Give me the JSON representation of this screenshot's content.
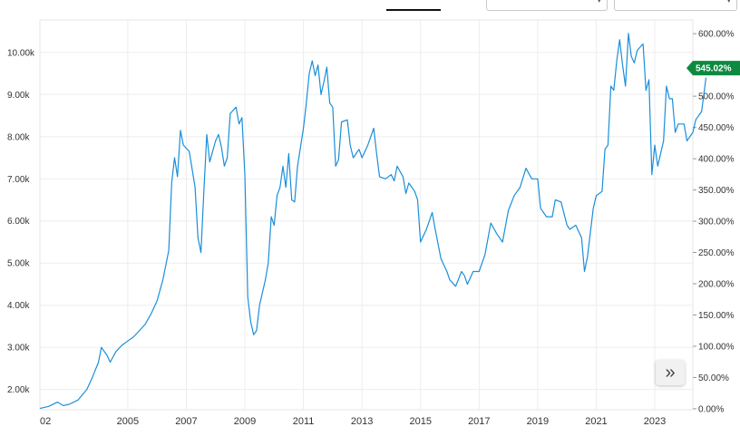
{
  "chart_data": {
    "type": "line",
    "title": "",
    "x_ticks": [
      "02",
      "2005",
      "2007",
      "2009",
      "2011",
      "2013",
      "2015",
      "2017",
      "2019",
      "2021",
      "2023"
    ],
    "x_tick_years": [
      2002.0,
      2005.0,
      2007.0,
      2009.0,
      2011.0,
      2013.0,
      2015.0,
      2017.0,
      2019.0,
      2021.0,
      2023.0
    ],
    "xlim": [
      2002.0,
      2024.3
    ],
    "y_left_ticks": [
      "2.00k",
      "3.00k",
      "4.00k",
      "5.00k",
      "6.00k",
      "7.00k",
      "8.00k",
      "9.00k",
      "10.00k"
    ],
    "y_left_tick_values": [
      2000,
      3000,
      4000,
      5000,
      6000,
      7000,
      8000,
      9000,
      10000
    ],
    "ylim_left": [
      1520,
      10770
    ],
    "y_right_ticks": [
      "0.00%",
      "50.00%",
      "100.00%",
      "150.00%",
      "200.00%",
      "250.00%",
      "300.00%",
      "350.00%",
      "400.00%",
      "450.00%",
      "500.00%",
      "550.00%",
      "600.00%"
    ],
    "y_right_tick_values": [
      0,
      50,
      100,
      150,
      200,
      250,
      300,
      350,
      400,
      450,
      500,
      550,
      600
    ],
    "ylim_right": [
      -1.6,
      622
    ],
    "grid": true,
    "series": [
      {
        "color": "#1a8fd9",
        "points": [
          [
            2002.0,
            1550
          ],
          [
            2002.3,
            1600
          ],
          [
            2002.6,
            1700
          ],
          [
            2002.8,
            1620
          ],
          [
            2003.0,
            1650
          ],
          [
            2003.3,
            1750
          ],
          [
            2003.6,
            2000
          ],
          [
            2003.8,
            2300
          ],
          [
            2004.0,
            2650
          ],
          [
            2004.1,
            3000
          ],
          [
            2004.3,
            2800
          ],
          [
            2004.4,
            2650
          ],
          [
            2004.6,
            2900
          ],
          [
            2004.8,
            3050
          ],
          [
            2005.0,
            3150
          ],
          [
            2005.2,
            3250
          ],
          [
            2005.4,
            3400
          ],
          [
            2005.6,
            3550
          ],
          [
            2005.8,
            3800
          ],
          [
            2006.0,
            4100
          ],
          [
            2006.2,
            4600
          ],
          [
            2006.4,
            5300
          ],
          [
            2006.5,
            6900
          ],
          [
            2006.6,
            7500
          ],
          [
            2006.7,
            7050
          ],
          [
            2006.8,
            8150
          ],
          [
            2006.9,
            7800
          ],
          [
            2007.1,
            7650
          ],
          [
            2007.3,
            6800
          ],
          [
            2007.4,
            5600
          ],
          [
            2007.5,
            5250
          ],
          [
            2007.6,
            6700
          ],
          [
            2007.7,
            8050
          ],
          [
            2007.8,
            7400
          ],
          [
            2008.0,
            7900
          ],
          [
            2008.1,
            8050
          ],
          [
            2008.2,
            7750
          ],
          [
            2008.3,
            7300
          ],
          [
            2008.4,
            7500
          ],
          [
            2008.5,
            8550
          ],
          [
            2008.7,
            8700
          ],
          [
            2008.8,
            8300
          ],
          [
            2008.9,
            8450
          ],
          [
            2009.0,
            7100
          ],
          [
            2009.1,
            4200
          ],
          [
            2009.2,
            3600
          ],
          [
            2009.3,
            3300
          ],
          [
            2009.4,
            3400
          ],
          [
            2009.5,
            4000
          ],
          [
            2009.7,
            4600
          ],
          [
            2009.8,
            5000
          ],
          [
            2009.9,
            6100
          ],
          [
            2010.0,
            5900
          ],
          [
            2010.1,
            6600
          ],
          [
            2010.2,
            6800
          ],
          [
            2010.3,
            7300
          ],
          [
            2010.4,
            6800
          ],
          [
            2010.5,
            7600
          ],
          [
            2010.6,
            6500
          ],
          [
            2010.7,
            6450
          ],
          [
            2010.8,
            7300
          ],
          [
            2011.0,
            8200
          ],
          [
            2011.1,
            8800
          ],
          [
            2011.2,
            9500
          ],
          [
            2011.3,
            9800
          ],
          [
            2011.4,
            9450
          ],
          [
            2011.5,
            9700
          ],
          [
            2011.6,
            9000
          ],
          [
            2011.7,
            9300
          ],
          [
            2011.8,
            9650
          ],
          [
            2011.9,
            8800
          ],
          [
            2012.0,
            8700
          ],
          [
            2012.1,
            7300
          ],
          [
            2012.2,
            7450
          ],
          [
            2012.3,
            8350
          ],
          [
            2012.5,
            8400
          ],
          [
            2012.6,
            7800
          ],
          [
            2012.7,
            7500
          ],
          [
            2012.8,
            7600
          ],
          [
            2012.9,
            7700
          ],
          [
            2013.0,
            7500
          ],
          [
            2013.2,
            7800
          ],
          [
            2013.4,
            8200
          ],
          [
            2013.5,
            7600
          ],
          [
            2013.6,
            7050
          ],
          [
            2013.8,
            7000
          ],
          [
            2014.0,
            7100
          ],
          [
            2014.1,
            6950
          ],
          [
            2014.2,
            7300
          ],
          [
            2014.4,
            7050
          ],
          [
            2014.5,
            6650
          ],
          [
            2014.6,
            6900
          ],
          [
            2014.8,
            6700
          ],
          [
            2014.9,
            6500
          ],
          [
            2015.0,
            5500
          ],
          [
            2015.2,
            5800
          ],
          [
            2015.4,
            6200
          ],
          [
            2015.5,
            5800
          ],
          [
            2015.7,
            5100
          ],
          [
            2015.9,
            4800
          ],
          [
            2016.0,
            4600
          ],
          [
            2016.2,
            4450
          ],
          [
            2016.4,
            4800
          ],
          [
            2016.5,
            4700
          ],
          [
            2016.6,
            4500
          ],
          [
            2016.8,
            4800
          ],
          [
            2017.0,
            4800
          ],
          [
            2017.2,
            5200
          ],
          [
            2017.4,
            5950
          ],
          [
            2017.6,
            5700
          ],
          [
            2017.8,
            5500
          ],
          [
            2018.0,
            6250
          ],
          [
            2018.2,
            6600
          ],
          [
            2018.4,
            6800
          ],
          [
            2018.6,
            7250
          ],
          [
            2018.8,
            7000
          ],
          [
            2019.0,
            7000
          ],
          [
            2019.1,
            6300
          ],
          [
            2019.3,
            6100
          ],
          [
            2019.5,
            6100
          ],
          [
            2019.6,
            6500
          ],
          [
            2019.8,
            6450
          ],
          [
            2020.0,
            5900
          ],
          [
            2020.1,
            5800
          ],
          [
            2020.3,
            5900
          ],
          [
            2020.5,
            5600
          ],
          [
            2020.6,
            4800
          ],
          [
            2020.7,
            5150
          ],
          [
            2020.9,
            6300
          ],
          [
            2021.0,
            6600
          ],
          [
            2021.1,
            6650
          ],
          [
            2021.2,
            6700
          ],
          [
            2021.3,
            7700
          ],
          [
            2021.4,
            7800
          ],
          [
            2021.5,
            9200
          ],
          [
            2021.6,
            9100
          ],
          [
            2021.7,
            9800
          ],
          [
            2021.8,
            10300
          ],
          [
            2021.9,
            9700
          ],
          [
            2022.0,
            9200
          ],
          [
            2022.1,
            10450
          ],
          [
            2022.2,
            9900
          ],
          [
            2022.3,
            9750
          ],
          [
            2022.4,
            10050
          ],
          [
            2022.6,
            10200
          ],
          [
            2022.7,
            9100
          ],
          [
            2022.8,
            9350
          ],
          [
            2022.9,
            7100
          ],
          [
            2023.0,
            7800
          ],
          [
            2023.1,
            7300
          ],
          [
            2023.3,
            7900
          ],
          [
            2023.4,
            9200
          ],
          [
            2023.5,
            8900
          ],
          [
            2023.6,
            8900
          ],
          [
            2023.7,
            8100
          ],
          [
            2023.8,
            8300
          ],
          [
            2024.0,
            8300
          ],
          [
            2024.1,
            7900
          ],
          [
            2024.3,
            8100
          ],
          [
            2024.4,
            8400
          ],
          [
            2024.6,
            8600
          ],
          [
            2024.75,
            9400
          ]
        ]
      }
    ],
    "last_value_badge": {
      "text": "545.02%",
      "color": "#0d8a3f",
      "value_pct": 545.02
    }
  },
  "controls": {
    "scroll_icon": "»",
    "scroll_icon_name": "double-chevron-right-icon"
  }
}
